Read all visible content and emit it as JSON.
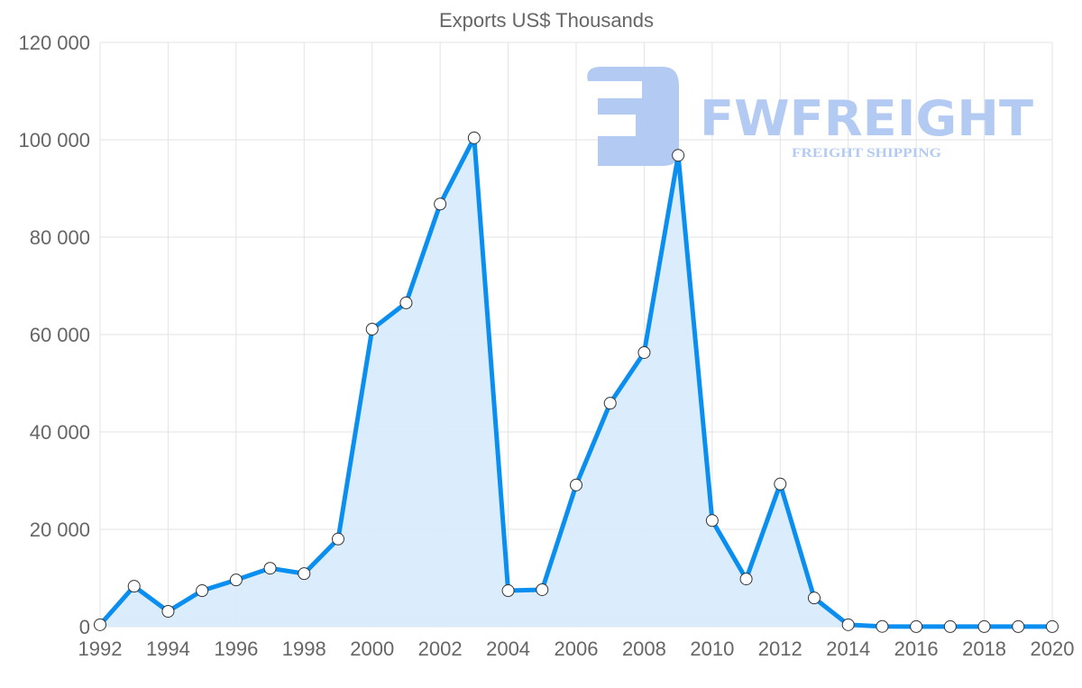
{
  "chart_data": {
    "type": "line",
    "title": "Exports US$ Thousands",
    "xlabel": "",
    "ylabel": "",
    "x": [
      1992,
      1993,
      1994,
      1995,
      1996,
      1997,
      1998,
      1999,
      2000,
      2001,
      2002,
      2003,
      2004,
      2005,
      2006,
      2007,
      2008,
      2009,
      2010,
      2011,
      2012,
      2013,
      2014,
      2015,
      2016,
      2017,
      2018,
      2019,
      2020
    ],
    "series": [
      {
        "name": "Exports US$ Thousands",
        "values": [
          400,
          8300,
          3150,
          7400,
          9600,
          12000,
          10900,
          18000,
          61100,
          66500,
          86800,
          100400,
          7400,
          7600,
          29100,
          45900,
          56300,
          96800,
          21800,
          9800,
          29300,
          5900,
          400,
          50,
          20,
          20,
          20,
          20,
          20
        ],
        "color": "#0a8ff0",
        "fill": "#d9ecfc"
      }
    ],
    "xlim": [
      1992,
      2020
    ],
    "ylim": [
      0,
      120000
    ],
    "xticks": [
      "1992",
      "1994",
      "1996",
      "1998",
      "2000",
      "2002",
      "2004",
      "2006",
      "2008",
      "2010",
      "2012",
      "2014",
      "2016",
      "2018",
      "2020"
    ],
    "yticks": [
      "0",
      "20 000",
      "40 000",
      "60 000",
      "80 000",
      "100 000",
      "120 000"
    ],
    "grid": true,
    "legend": "none"
  },
  "watermark": {
    "brand": "FWFREIGHT",
    "tagline": "FREIGHT SHIPPING",
    "color": "#b3cbf3"
  }
}
